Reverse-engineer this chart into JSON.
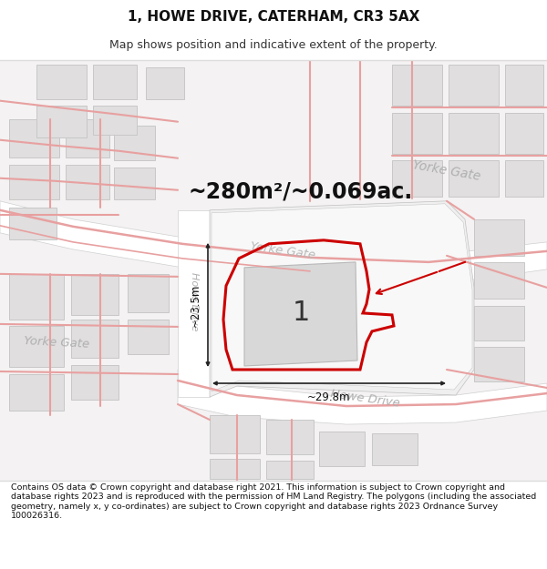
{
  "title": "1, HOWE DRIVE, CATERHAM, CR3 5AX",
  "subtitle": "Map shows position and indicative extent of the property.",
  "area_text": "~280m²/~0.069ac.",
  "measurement_width": "~29.8m",
  "measurement_height": "~23.5m",
  "label_number": "1",
  "footer": "Contains OS data © Crown copyright and database right 2021. This information is subject to Crown copyright and database rights 2023 and is reproduced with the permission of HM Land Registry. The polygons (including the associated geometry, namely x, y co-ordinates) are subject to Crown copyright and database rights 2023 Ordnance Survey 100026316.",
  "highlight_color": "#cc0000",
  "pink_road": "#e8a0a0",
  "map_bg": "#f8f8f8"
}
